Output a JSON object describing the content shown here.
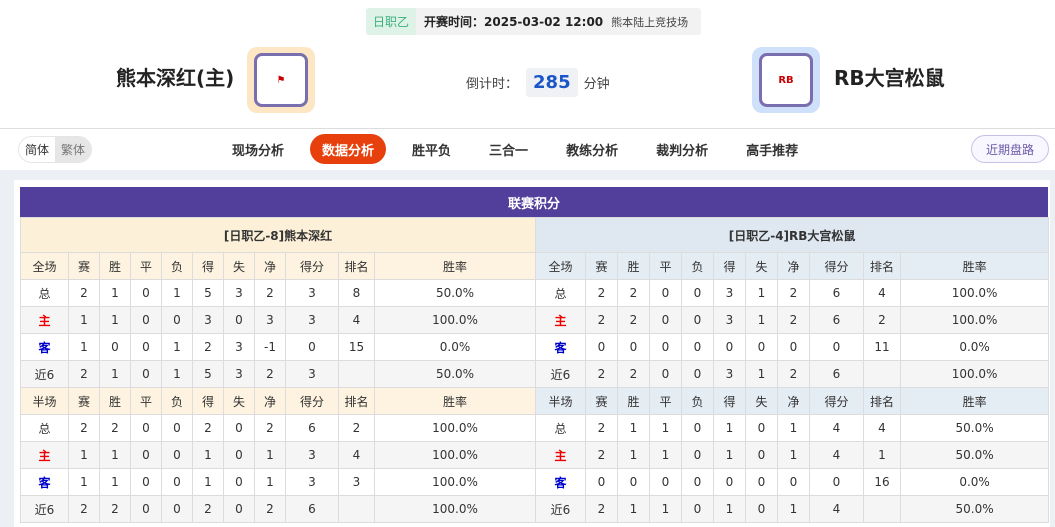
{
  "match": {
    "league": "日职乙",
    "kickoff": "开赛时间：2025-03-02 12:00",
    "venue": "熊本陆上竞技场",
    "home": "熊本深红(主)",
    "away": "RB大宫松鼠",
    "countdown_label": "倒计时：",
    "countdown": "285",
    "countdown_unit": "分钟",
    "home_logo_color": "#fde6c4",
    "away_logo_color": "#cfe0fb"
  },
  "nav": {
    "lang": [
      "简体",
      "繁体"
    ],
    "tabs": [
      "现场分析",
      "数据分析",
      "胜平负",
      "三合一",
      "教练分析",
      "裁判分析",
      "高手推荐"
    ],
    "active": "数据分析",
    "recent": "近期盘路"
  },
  "standings": {
    "title": "联赛积分",
    "columns": [
      "赛",
      "胜",
      "平",
      "负",
      "得",
      "失",
      "净",
      "得分",
      "排名",
      "胜率"
    ],
    "home": {
      "header": "[日职乙-8]熊本深红",
      "full": {
        "label": "全场",
        "rows": [
          [
            "总",
            "2",
            "1",
            "0",
            "1",
            "5",
            "3",
            "2",
            "3",
            "8",
            "50.0%"
          ],
          [
            "主",
            "1",
            "1",
            "0",
            "0",
            "3",
            "0",
            "3",
            "3",
            "4",
            "100.0%"
          ],
          [
            "客",
            "1",
            "0",
            "0",
            "1",
            "2",
            "3",
            "-1",
            "0",
            "15",
            "0.0%"
          ],
          [
            "近6",
            "2",
            "1",
            "0",
            "1",
            "5",
            "3",
            "2",
            "3",
            "",
            "50.0%"
          ]
        ]
      },
      "half": {
        "label": "半场",
        "rows": [
          [
            "总",
            "2",
            "2",
            "0",
            "0",
            "2",
            "0",
            "2",
            "6",
            "2",
            "100.0%"
          ],
          [
            "主",
            "1",
            "1",
            "0",
            "0",
            "1",
            "0",
            "1",
            "3",
            "4",
            "100.0%"
          ],
          [
            "客",
            "1",
            "1",
            "0",
            "0",
            "1",
            "0",
            "1",
            "3",
            "3",
            "100.0%"
          ],
          [
            "近6",
            "2",
            "2",
            "0",
            "0",
            "2",
            "0",
            "2",
            "6",
            "",
            "100.0%"
          ]
        ]
      }
    },
    "away": {
      "header": "[日职乙-4]RB大宫松鼠",
      "full": {
        "label": "全场",
        "rows": [
          [
            "总",
            "2",
            "2",
            "0",
            "0",
            "3",
            "1",
            "2",
            "6",
            "4",
            "100.0%"
          ],
          [
            "主",
            "2",
            "2",
            "0",
            "0",
            "3",
            "1",
            "2",
            "6",
            "2",
            "100.0%"
          ],
          [
            "客",
            "0",
            "0",
            "0",
            "0",
            "0",
            "0",
            "0",
            "0",
            "11",
            "0.0%"
          ],
          [
            "近6",
            "2",
            "2",
            "0",
            "0",
            "3",
            "1",
            "2",
            "6",
            "",
            "100.0%"
          ]
        ]
      },
      "half": {
        "label": "半场",
        "rows": [
          [
            "总",
            "2",
            "1",
            "1",
            "0",
            "1",
            "0",
            "1",
            "4",
            "4",
            "50.0%"
          ],
          [
            "主",
            "2",
            "1",
            "1",
            "0",
            "1",
            "0",
            "1",
            "4",
            "1",
            "50.0%"
          ],
          [
            "客",
            "0",
            "0",
            "0",
            "0",
            "0",
            "0",
            "0",
            "0",
            "16",
            "0.0%"
          ],
          [
            "近6",
            "2",
            "1",
            "1",
            "0",
            "1",
            "0",
            "1",
            "4",
            "",
            "50.0%"
          ]
        ]
      }
    }
  }
}
